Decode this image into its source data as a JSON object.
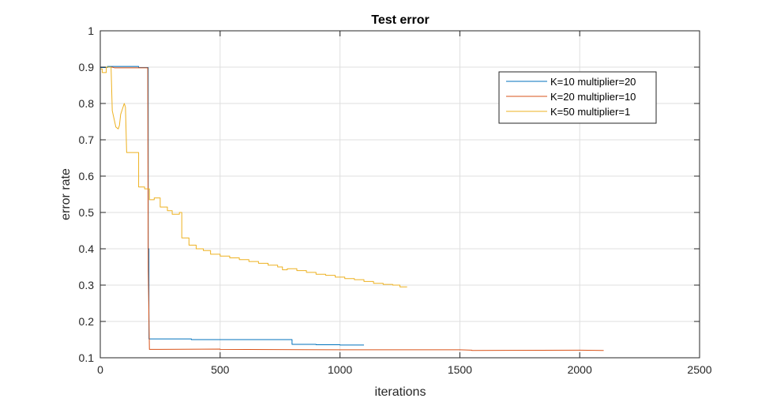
{
  "chart_data": {
    "type": "line",
    "title": "Test error",
    "xlabel": "iterations",
    "ylabel": "error rate",
    "xlim": [
      0,
      2500
    ],
    "ylim": [
      0.1,
      1
    ],
    "xticks": [
      0,
      500,
      1000,
      1500,
      2000,
      2500
    ],
    "yticks": [
      0.1,
      0.2,
      0.3,
      0.4,
      0.5,
      0.6,
      0.7,
      0.8,
      0.9,
      1
    ],
    "xtick_labels": [
      "0",
      "500",
      "1000",
      "1500",
      "2000",
      "2500"
    ],
    "ytick_labels": [
      "0.1",
      "0.2",
      "0.3",
      "0.4",
      "0.5",
      "0.6",
      "0.7",
      "0.8",
      "0.9",
      "1"
    ],
    "grid": true,
    "legend_position": "top-right",
    "series": [
      {
        "name": "K=10 multiplier=20",
        "color": "#0072BD",
        "x": [
          0,
          30,
          30,
          160,
          160,
          200,
          200,
          203,
          203,
          380,
          380,
          800,
          800,
          900,
          900,
          1000,
          1000,
          1100
        ],
        "y": [
          0.899,
          0.899,
          0.902,
          0.902,
          0.899,
          0.899,
          0.4,
          0.4,
          0.152,
          0.152,
          0.15,
          0.15,
          0.137,
          0.137,
          0.136,
          0.136,
          0.135,
          0.135
        ]
      },
      {
        "name": "K=20 multiplier=10",
        "color": "#D95319",
        "x": [
          0,
          50,
          60,
          198,
          200,
          205,
          250,
          500,
          500,
          1000,
          1500,
          1550,
          1550,
          2000,
          2100
        ],
        "y": [
          0.9,
          0.9,
          0.898,
          0.898,
          0.34,
          0.123,
          0.123,
          0.124,
          0.123,
          0.122,
          0.122,
          0.121,
          0.12,
          0.121,
          0.12
        ]
      },
      {
        "name": "K=50 multiplier=1",
        "color": "#EDB120",
        "x": [
          0,
          8,
          8,
          25,
          25,
          45,
          50,
          60,
          65,
          75,
          80,
          85,
          95,
          100,
          105,
          110,
          110,
          145,
          145,
          160,
          160,
          185,
          185,
          200,
          205,
          205,
          225,
          225,
          250,
          250,
          280,
          280,
          300,
          300,
          330,
          330,
          340,
          340,
          370,
          370,
          400,
          400,
          430,
          430,
          460,
          460,
          500,
          500,
          540,
          540,
          580,
          580,
          620,
          620,
          660,
          660,
          700,
          700,
          740,
          740,
          760,
          760,
          780,
          780,
          820,
          820,
          860,
          860,
          900,
          900,
          940,
          940,
          980,
          980,
          1020,
          1020,
          1060,
          1060,
          1100,
          1100,
          1140,
          1140,
          1180,
          1180,
          1220,
          1220,
          1250,
          1250,
          1280
        ],
        "y": [
          0.895,
          0.895,
          0.885,
          0.885,
          0.9,
          0.9,
          0.78,
          0.75,
          0.735,
          0.73,
          0.74,
          0.77,
          0.79,
          0.8,
          0.79,
          0.665,
          0.665,
          0.665,
          0.665,
          0.665,
          0.57,
          0.57,
          0.565,
          0.565,
          0.565,
          0.535,
          0.535,
          0.54,
          0.54,
          0.515,
          0.515,
          0.505,
          0.505,
          0.495,
          0.495,
          0.5,
          0.5,
          0.43,
          0.43,
          0.41,
          0.41,
          0.4,
          0.4,
          0.395,
          0.395,
          0.385,
          0.385,
          0.38,
          0.38,
          0.375,
          0.375,
          0.37,
          0.37,
          0.365,
          0.365,
          0.36,
          0.36,
          0.355,
          0.355,
          0.35,
          0.35,
          0.342,
          0.342,
          0.345,
          0.345,
          0.34,
          0.34,
          0.335,
          0.335,
          0.33,
          0.33,
          0.327,
          0.327,
          0.322,
          0.322,
          0.318,
          0.318,
          0.315,
          0.315,
          0.31,
          0.31,
          0.305,
          0.305,
          0.302,
          0.302,
          0.3,
          0.3,
          0.295,
          0.295
        ]
      }
    ]
  }
}
